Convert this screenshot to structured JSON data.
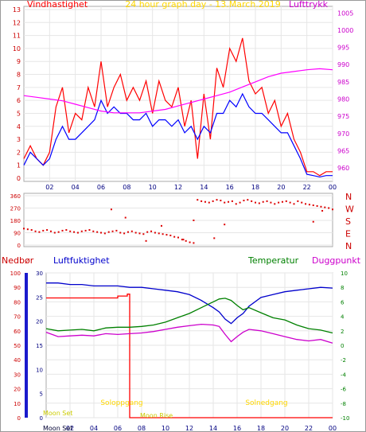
{
  "title": "24 hour graph day - 13.March.2019",
  "labels": {
    "wind": "Vindhastighet",
    "pressure": "Lufttrykk",
    "rain": "Nedbør",
    "humidity": "Luftfuktighet",
    "temperature": "Temperatur",
    "dewpoint": "Duggpunkt",
    "sunrise": "Soloppgang",
    "sunset": "Solnedgang",
    "moonrise": "Moon Rise",
    "moonset": "Moon Set",
    "moonset_top": "Moon Set"
  },
  "colors": {
    "wind": "#ff0000",
    "wind_avg": "#0000ff",
    "pressure": "#ff00ff",
    "title": "#ffd700",
    "rain": "#ff0000",
    "humidity": "#0000cc",
    "temperature": "#008000",
    "dewpoint": "#cc00cc",
    "sun": "#ffd700",
    "moon": "#cccc00"
  },
  "chart_data": [
    {
      "type": "line",
      "name": "wind-pressure",
      "x_ticks": [
        "02",
        "04",
        "06",
        "08",
        "10",
        "12",
        "14",
        "16",
        "18",
        "20",
        "22",
        "00"
      ],
      "left_ticks": [
        "0",
        "1",
        "2",
        "3",
        "4",
        "5",
        "6",
        "7",
        "8",
        "9",
        "10",
        "11",
        "12",
        "13"
      ],
      "right_ticks": [
        "960",
        "965",
        "970",
        "975",
        "980",
        "985",
        "990",
        "995",
        "1000",
        "1005"
      ],
      "ylim_left": [
        0,
        13
      ],
      "ylim_right": [
        957,
        1006
      ],
      "xlim": [
        0,
        24
      ],
      "series": [
        {
          "key": "gust",
          "x": [
            0,
            0.5,
            1,
            1.5,
            2,
            2.5,
            3,
            3.5,
            4,
            4.5,
            5,
            5.5,
            6,
            6.5,
            7,
            7.5,
            8,
            8.5,
            9,
            9.5,
            10,
            10.5,
            11,
            11.5,
            12,
            12.5,
            13,
            13.5,
            14,
            14.5,
            15,
            15.5,
            16,
            16.5,
            17,
            17.5,
            18,
            18.5,
            19,
            19.5,
            20,
            20.5,
            21,
            21.5,
            22,
            22.5,
            23,
            23.5,
            24
          ],
          "y": [
            1.5,
            2.5,
            1.5,
            1,
            2,
            5.5,
            7,
            3.5,
            5,
            4.5,
            7,
            5.5,
            9,
            5.5,
            7,
            8,
            6,
            7,
            6,
            7.5,
            5,
            7.5,
            6,
            5.5,
            7,
            4,
            6,
            1.5,
            6.5,
            3,
            8.5,
            7,
            10,
            9,
            10.8,
            7.5,
            6.5,
            7,
            5,
            6,
            4,
            5,
            3,
            2,
            0.5,
            0.5,
            0.2,
            0.5,
            0.5
          ]
        },
        {
          "key": "wind",
          "x": [
            0,
            0.5,
            1,
            1.5,
            2,
            2.5,
            3,
            3.5,
            4,
            4.5,
            5,
            5.5,
            6,
            6.5,
            7,
            7.5,
            8,
            8.5,
            9,
            9.5,
            10,
            10.5,
            11,
            11.5,
            12,
            12.5,
            13,
            13.5,
            14,
            14.5,
            15,
            15.5,
            16,
            16.5,
            17,
            17.5,
            18,
            18.5,
            19,
            19.5,
            20,
            20.5,
            21,
            21.5,
            22,
            22.5,
            23,
            23.5,
            24
          ],
          "y": [
            1,
            2,
            1.5,
            1,
            1.5,
            3,
            4,
            3,
            3,
            3.5,
            4,
            4.5,
            6,
            5,
            5.5,
            5,
            5,
            4.5,
            4.5,
            5,
            4,
            4.5,
            4.5,
            4,
            4.5,
            3.5,
            4,
            3,
            4,
            3.5,
            5,
            5,
            6,
            5.5,
            6.5,
            5.5,
            5,
            5,
            4.5,
            4,
            3.5,
            3.5,
            2.5,
            1.5,
            0.3,
            0.2,
            0.1,
            0.2,
            0.2
          ]
        },
        {
          "key": "pressure",
          "x": [
            0,
            1,
            2,
            3,
            4,
            5,
            6,
            7,
            8,
            9,
            10,
            11,
            12,
            13,
            14,
            15,
            16,
            17,
            18,
            19,
            20,
            21,
            22,
            23,
            24
          ],
          "y": [
            981,
            980.5,
            980,
            979.5,
            978.5,
            977.5,
            976.5,
            976,
            976,
            976,
            976.5,
            977,
            978,
            979,
            980,
            981,
            982,
            983.5,
            985,
            986.5,
            987.5,
            988,
            988.5,
            988.8,
            988.5
          ]
        }
      ]
    },
    {
      "type": "scatter",
      "name": "wind-direction",
      "x_ticks": [],
      "left_ticks": [
        "0",
        "45",
        "90",
        "135",
        "180",
        "225",
        "270",
        "315",
        "360"
      ],
      "right_ticks": [
        "N",
        "W",
        "S",
        "E",
        "N"
      ],
      "ylim": [
        0,
        360
      ],
      "xlim": [
        0,
        24
      ],
      "points": {
        "x": [
          0,
          0.3,
          0.6,
          0.9,
          1.2,
          1.5,
          1.8,
          2.1,
          2.4,
          2.7,
          3,
          3.3,
          3.6,
          3.9,
          4.2,
          4.5,
          4.8,
          5.1,
          5.4,
          5.7,
          6,
          6.3,
          6.6,
          6.9,
          7.2,
          7.5,
          7.8,
          8.1,
          8.4,
          8.7,
          9,
          9.3,
          9.6,
          9.9,
          10.2,
          10.5,
          10.8,
          11.1,
          11.4,
          11.7,
          12,
          12.3,
          12.6,
          12.9,
          13.2,
          13.5,
          13.8,
          14.1,
          14.4,
          14.7,
          15,
          15.3,
          15.6,
          15.9,
          16.2,
          16.5,
          16.8,
          17.1,
          17.4,
          17.7,
          18,
          18.3,
          18.6,
          18.9,
          19.2,
          19.5,
          19.8,
          20.1,
          20.4,
          20.7,
          21,
          21.3,
          21.6,
          21.9,
          22.2,
          22.5,
          22.8,
          23.1,
          23.4,
          23.7,
          24,
          6.8,
          7.9,
          13.2,
          14.8,
          15.6,
          12.4,
          9.5,
          10.7,
          22.5,
          23.2
        ],
        "y": [
          120,
          115,
          110,
          100,
          95,
          105,
          110,
          100,
          90,
          95,
          105,
          110,
          100,
          95,
          90,
          100,
          105,
          110,
          100,
          95,
          90,
          85,
          95,
          100,
          105,
          90,
          85,
          95,
          100,
          90,
          85,
          80,
          95,
          100,
          90,
          85,
          80,
          75,
          70,
          60,
          55,
          40,
          30,
          20,
          15,
          330,
          320,
          315,
          310,
          320,
          330,
          325,
          310,
          315,
          320,
          300,
          310,
          325,
          330,
          320,
          310,
          305,
          315,
          320,
          310,
          300,
          310,
          315,
          320,
          310,
          300,
          320,
          310,
          300,
          295,
          290,
          285,
          280,
          275,
          270,
          260,
          260,
          200,
          180,
          50,
          150,
          40,
          30,
          140,
          170,
          250
        ]
      }
    },
    {
      "type": "line",
      "name": "rain-humidity-temperature",
      "x_ticks": [
        "02",
        "04",
        "06",
        "08",
        "10",
        "12",
        "14",
        "16",
        "18",
        "20",
        "22",
        "00"
      ],
      "rain_ticks": [
        "0",
        "5",
        "10",
        "15",
        "20",
        "25",
        "30",
        "35",
        "40",
        "45",
        "50",
        "55",
        "60",
        "65",
        "70",
        "75",
        "80",
        "85",
        "90",
        "95",
        "100"
      ],
      "humidity_ticks": [
        "0",
        "5",
        "10",
        "15",
        "20",
        "25",
        "30",
        "35",
        "40",
        "45",
        "50",
        "55",
        "60",
        "65",
        "70",
        "75",
        "80",
        "85",
        "90",
        "95",
        "100"
      ],
      "temp_ticks": [
        "-10",
        "-8",
        "-6",
        "-4",
        "-2",
        "0",
        "2",
        "4",
        "6",
        "8",
        "10"
      ],
      "rain_ylim": [
        0,
        30
      ],
      "humidity_ylim": [
        0,
        100
      ],
      "temp_ylim": [
        -10,
        10
      ],
      "xlim": [
        0,
        24
      ],
      "series": [
        {
          "key": "rain",
          "x": [
            0,
            6,
            6,
            6.8,
            6.8,
            7,
            7,
            24
          ],
          "y": [
            24.8,
            24.8,
            25.2,
            25.2,
            25.6,
            25.6,
            0,
            0
          ]
        },
        {
          "key": "humidity",
          "x": [
            0,
            1,
            2,
            3,
            4,
            5,
            6,
            7,
            8,
            9,
            10,
            11,
            12,
            13,
            14,
            14.5,
            15,
            15.5,
            16,
            16.5,
            17,
            18,
            19,
            20,
            21,
            22,
            23,
            24
          ],
          "y": [
            93,
            93,
            92,
            92,
            91,
            91,
            91,
            90,
            90,
            89,
            88,
            87,
            85,
            81,
            76,
            73,
            68,
            65,
            69,
            72,
            77,
            83,
            85,
            87,
            88,
            89,
            90,
            89.5
          ]
        },
        {
          "key": "temperature",
          "x": [
            0,
            1,
            2,
            3,
            4,
            5,
            6,
            7,
            8,
            9,
            10,
            11,
            12,
            13,
            14,
            14.5,
            15,
            15.5,
            16,
            16.5,
            17,
            18,
            19,
            20,
            21,
            22,
            23,
            24
          ],
          "y": [
            2.3,
            2,
            2.1,
            2.2,
            2,
            2.4,
            2.5,
            2.5,
            2.6,
            2.8,
            3.2,
            3.8,
            4.4,
            5.2,
            6,
            6.4,
            6.5,
            6.2,
            5.5,
            4.9,
            5.2,
            4.5,
            3.8,
            3.5,
            2.8,
            2.3,
            2.1,
            1.7
          ]
        },
        {
          "key": "dewpoint",
          "x": [
            0,
            1,
            2,
            3,
            4,
            5,
            6,
            7,
            8,
            9,
            10,
            11,
            12,
            13,
            14,
            14.5,
            15,
            15.5,
            16,
            16.5,
            17,
            18,
            19,
            20,
            21,
            22,
            23,
            24
          ],
          "y": [
            1.8,
            1.2,
            1.3,
            1.4,
            1.3,
            1.6,
            1.5,
            1.6,
            1.7,
            1.9,
            2.2,
            2.5,
            2.7,
            2.9,
            2.8,
            2.6,
            1.5,
            0.5,
            1.2,
            1.8,
            2.2,
            2,
            1.6,
            1.2,
            0.8,
            0.6,
            0.8,
            0.3
          ]
        }
      ]
    }
  ]
}
